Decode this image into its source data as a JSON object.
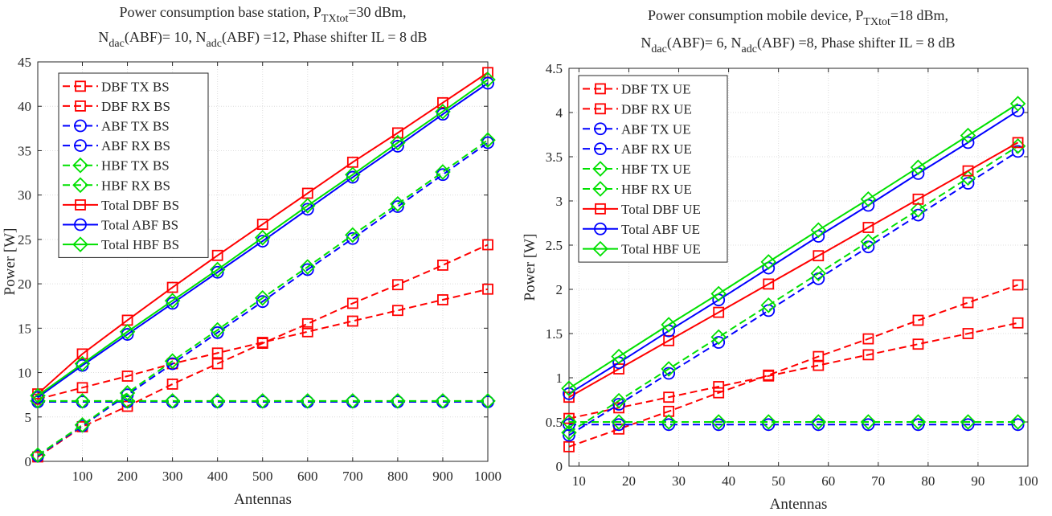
{
  "chart_data": [
    {
      "type": "line",
      "title_parts": {
        "l1_a": "Power consumption base station, P",
        "l1_sub": "TXtot",
        "l1_b": "=30 dBm,",
        "l2_a": "N",
        "l2_sub1": "dac",
        "l2_b": "(ABF)= 10, N",
        "l2_sub2": "adc",
        "l2_c": "(ABF) =12, Phase shifter IL = 8 dB"
      },
      "xlabel": "Antennas",
      "ylabel": "Power [W]",
      "xlim": [
        1,
        1000
      ],
      "ylim": [
        0,
        45
      ],
      "xticks": [
        100,
        200,
        300,
        400,
        500,
        600,
        700,
        800,
        900,
        1000
      ],
      "yticks": [
        0,
        5,
        10,
        15,
        20,
        25,
        30,
        35,
        40,
        45
      ],
      "grid": true,
      "legend_position": "top-left",
      "x": [
        1,
        100,
        200,
        300,
        400,
        500,
        600,
        700,
        800,
        900,
        1000
      ],
      "series": [
        {
          "name": "DBF TX BS",
          "color": "#ff0000",
          "style": "dashed",
          "marker": "square",
          "values": [
            0.5,
            3.9,
            6.2,
            8.7,
            11.0,
            13.3,
            15.5,
            17.8,
            19.9,
            22.1,
            24.4
          ]
        },
        {
          "name": "DBF RX BS",
          "color": "#ff0000",
          "style": "dashed",
          "marker": "square",
          "values": [
            7.0,
            8.3,
            9.6,
            11.0,
            12.2,
            13.4,
            14.6,
            15.8,
            17.0,
            18.2,
            19.4
          ]
        },
        {
          "name": "ABF TX BS",
          "color": "#0000ff",
          "style": "dashed",
          "marker": "circle",
          "values": [
            0.6,
            4.0,
            7.5,
            11.0,
            14.5,
            18.0,
            21.6,
            25.1,
            28.7,
            32.3,
            35.9
          ]
        },
        {
          "name": "ABF RX BS",
          "color": "#0000ff",
          "style": "dashed",
          "marker": "circle",
          "values": [
            6.7,
            6.7,
            6.7,
            6.7,
            6.7,
            6.7,
            6.7,
            6.7,
            6.7,
            6.7,
            6.7
          ]
        },
        {
          "name": "HBF TX BS",
          "color": "#00e000",
          "style": "dashed",
          "marker": "diamond",
          "values": [
            0.7,
            4.1,
            7.7,
            11.3,
            14.8,
            18.4,
            21.9,
            25.5,
            29.0,
            32.6,
            36.2
          ]
        },
        {
          "name": "HBF RX BS",
          "color": "#00e000",
          "style": "dashed",
          "marker": "diamond",
          "values": [
            6.8,
            6.8,
            6.8,
            6.8,
            6.8,
            6.8,
            6.8,
            6.8,
            6.8,
            6.8,
            6.8
          ]
        },
        {
          "name": "Total DBF BS",
          "color": "#ff0000",
          "style": "solid",
          "marker": "square",
          "values": [
            7.6,
            12.1,
            15.9,
            19.6,
            23.2,
            26.7,
            30.2,
            33.7,
            37.0,
            40.4,
            43.8
          ]
        },
        {
          "name": "Total ABF BS",
          "color": "#0000ff",
          "style": "solid",
          "marker": "circle",
          "values": [
            7.2,
            10.8,
            14.3,
            17.8,
            21.3,
            24.8,
            28.4,
            32.0,
            35.5,
            39.1,
            42.6
          ]
        },
        {
          "name": "Total HBF BS",
          "color": "#00e000",
          "style": "solid",
          "marker": "diamond",
          "values": [
            7.4,
            11.0,
            14.6,
            18.1,
            21.6,
            25.2,
            28.8,
            32.3,
            35.9,
            39.4,
            43.0
          ]
        }
      ]
    },
    {
      "type": "line",
      "title_parts": {
        "l1_a": "Power consumption mobile device, P",
        "l1_sub": "TXtot",
        "l1_b": "=18 dBm,",
        "l2_a": "N",
        "l2_sub1": "dac",
        "l2_b": "(ABF)= 6, N",
        "l2_sub2": "adc",
        "l2_c": "(ABF) =8, Phase shifter IL = 8 dB"
      },
      "xlabel": "Antennas",
      "ylabel": "Power [W]",
      "xlim": [
        8,
        100
      ],
      "ylim": [
        0,
        4.5
      ],
      "xticks": [
        10,
        20,
        30,
        40,
        50,
        60,
        70,
        80,
        90,
        100
      ],
      "yticks": [
        0,
        0.5,
        1,
        1.5,
        2,
        2.5,
        3,
        3.5,
        4,
        4.5
      ],
      "grid": true,
      "legend_position": "top-left",
      "x": [
        8,
        18,
        28,
        38,
        48,
        58,
        68,
        78,
        88,
        98
      ],
      "series": [
        {
          "name": "DBF TX UE",
          "color": "#ff0000",
          "style": "dashed",
          "marker": "square",
          "values": [
            0.22,
            0.42,
            0.62,
            0.83,
            1.03,
            1.24,
            1.44,
            1.65,
            1.85,
            2.05
          ]
        },
        {
          "name": "DBF RX UE",
          "color": "#ff0000",
          "style": "dashed",
          "marker": "square",
          "values": [
            0.54,
            0.66,
            0.78,
            0.9,
            1.02,
            1.14,
            1.26,
            1.38,
            1.5,
            1.62
          ]
        },
        {
          "name": "ABF TX UE",
          "color": "#0000ff",
          "style": "dashed",
          "marker": "circle",
          "values": [
            0.35,
            0.7,
            1.05,
            1.4,
            1.76,
            2.12,
            2.48,
            2.84,
            3.2,
            3.56
          ]
        },
        {
          "name": "ABF RX UE",
          "color": "#0000ff",
          "style": "dashed",
          "marker": "circle",
          "values": [
            0.47,
            0.47,
            0.47,
            0.47,
            0.47,
            0.47,
            0.47,
            0.47,
            0.47,
            0.47
          ]
        },
        {
          "name": "HBF TX UE",
          "color": "#00e000",
          "style": "dashed",
          "marker": "diamond",
          "values": [
            0.38,
            0.74,
            1.1,
            1.46,
            1.82,
            2.18,
            2.54,
            2.9,
            3.26,
            3.62
          ]
        },
        {
          "name": "HBF RX UE",
          "color": "#00e000",
          "style": "dashed",
          "marker": "diamond",
          "values": [
            0.5,
            0.5,
            0.5,
            0.5,
            0.5,
            0.5,
            0.5,
            0.5,
            0.5,
            0.5
          ]
        },
        {
          "name": "Total DBF UE",
          "color": "#ff0000",
          "style": "solid",
          "marker": "square",
          "values": [
            0.78,
            1.1,
            1.42,
            1.74,
            2.06,
            2.38,
            2.7,
            3.02,
            3.34,
            3.66
          ]
        },
        {
          "name": "Total ABF UE",
          "color": "#0000ff",
          "style": "solid",
          "marker": "circle",
          "values": [
            0.82,
            1.17,
            1.53,
            1.88,
            2.24,
            2.6,
            2.95,
            3.31,
            3.66,
            4.02
          ]
        },
        {
          "name": "Total HBF UE",
          "color": "#00e000",
          "style": "solid",
          "marker": "diamond",
          "values": [
            0.88,
            1.24,
            1.6,
            1.95,
            2.31,
            2.67,
            3.02,
            3.38,
            3.74,
            4.1
          ]
        }
      ]
    }
  ]
}
